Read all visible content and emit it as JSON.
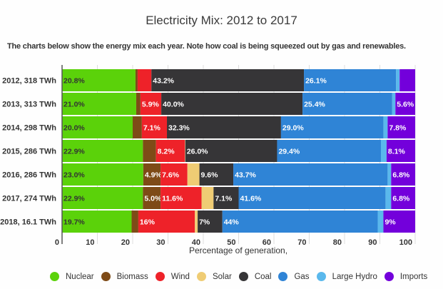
{
  "chart_data": {
    "type": "bar",
    "orientation": "horizontal",
    "stacked": true,
    "title": "Electricity Mix: 2012 to 2017",
    "subtitle": "The charts below show the energy mix each year. Note how coal is being squeezed out by gas and renewables.",
    "xlabel": "Percentage of generation,",
    "ylabel": "",
    "xlim": [
      0,
      100
    ],
    "xticks": [
      0,
      10,
      20,
      30,
      40,
      50,
      60,
      70,
      80,
      90,
      100
    ],
    "grid": true,
    "legend_position": "bottom",
    "categories": [
      "2012, 318 TWh",
      "2013, 313 TWh",
      "2014, 298 TWh",
      "2015, 286 TWh",
      "2016, 286 TWh",
      "2017, 274 TWh",
      "2018, 16.1 TWh"
    ],
    "series": [
      {
        "name": "Nuclear",
        "color": "#5bd20a",
        "values": [
          20.8,
          21.0,
          20.0,
          22.9,
          23.0,
          22.9,
          19.7
        ],
        "labels": [
          "20.8%",
          "21.0%",
          "20.0%",
          "22.9%",
          "23.0%",
          "22.9%",
          "19.7%"
        ],
        "dark_label": true
      },
      {
        "name": "Biomass",
        "color": "#7e4b17",
        "values": [
          0.6,
          1.2,
          2.6,
          3.7,
          4.9,
          5.0,
          1.9
        ],
        "labels": [
          "",
          "",
          "",
          "",
          "4.9%",
          "5.0%",
          ""
        ]
      },
      {
        "name": "Wind",
        "color": "#ee2229",
        "values": [
          3.9,
          5.9,
          7.1,
          8.2,
          7.6,
          11.6,
          16
        ],
        "labels": [
          "",
          "5.9%",
          "7.1%",
          "8.2%",
          "7.6%",
          "11.6%",
          "16%"
        ]
      },
      {
        "name": "Solar",
        "color": "#efcc74",
        "values": [
          0,
          0,
          0,
          0.1,
          3.4,
          3.4,
          0.8
        ],
        "labels": [
          "",
          "",
          "",
          "",
          "",
          "",
          ""
        ]
      },
      {
        "name": "Coal",
        "color": "#363537",
        "values": [
          43.2,
          40.0,
          32.3,
          26.0,
          9.6,
          7.1,
          7
        ],
        "labels": [
          "43.2%",
          "40.0%",
          "32.3%",
          "26.0%",
          "9.6%",
          "7.1%",
          "7%"
        ]
      },
      {
        "name": "Gas",
        "color": "#2f84d6",
        "values": [
          26.1,
          25.4,
          29.0,
          29.4,
          43.7,
          41.6,
          44
        ],
        "labels": [
          "26.1%",
          "25.4%",
          "29.0%",
          "29.4%",
          "43.7%",
          "41.6%",
          "44%"
        ]
      },
      {
        "name": "Large Hydro",
        "color": "#5ab8ec",
        "values": [
          1.0,
          0.9,
          1.2,
          1.6,
          1.0,
          1.6,
          1.6
        ],
        "labels": [
          "",
          "",
          "",
          "",
          "",
          "",
          ""
        ]
      },
      {
        "name": "Imports",
        "color": "#7300db",
        "values": [
          4.4,
          5.6,
          7.8,
          8.1,
          6.8,
          6.8,
          9
        ],
        "labels": [
          "",
          "5.6%",
          "7.8%",
          "8.1%",
          "6.8%",
          "6.8%",
          "9%"
        ]
      }
    ]
  }
}
